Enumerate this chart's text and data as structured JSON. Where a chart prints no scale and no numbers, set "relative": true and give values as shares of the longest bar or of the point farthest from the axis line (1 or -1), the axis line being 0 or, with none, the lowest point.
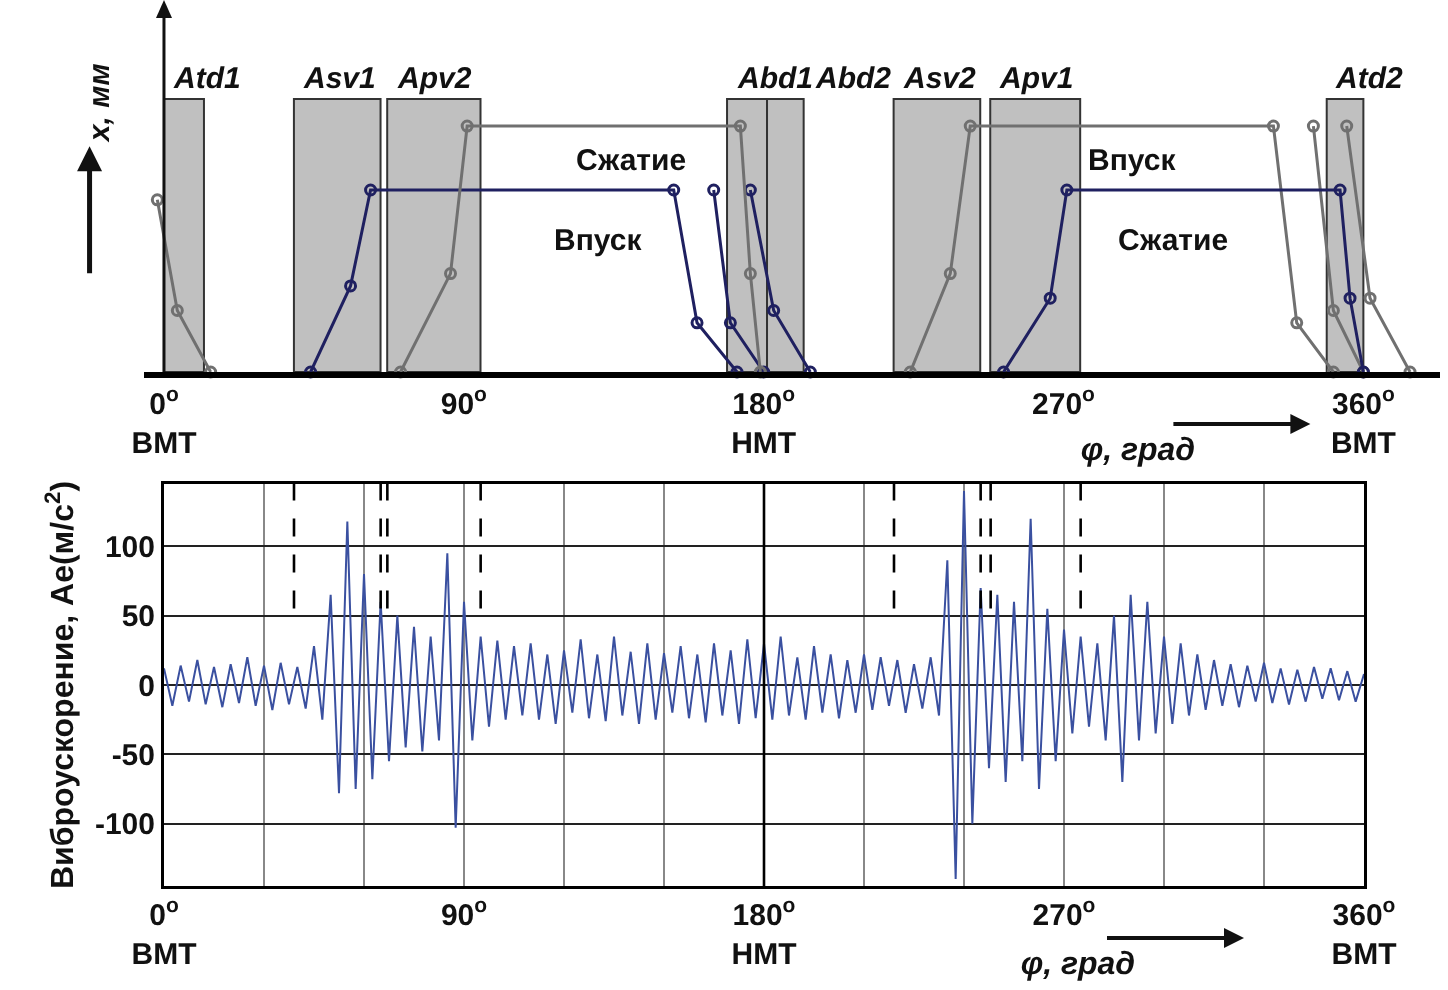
{
  "chart_data": [
    {
      "type": "line",
      "relative": true,
      "ylabel": "x, мм",
      "xlabel": "φ, град",
      "marker": "circle",
      "tick_labels": "x",
      "xlim": [
        -6,
        383
      ],
      "xticks": [
        {
          "value": 0,
          "label": "0$^{o}$\nВМТ"
        },
        {
          "value": 90,
          "label": "90$^{o}$"
        },
        {
          "value": 180,
          "label": "180$^{o}$\nНМТ"
        },
        {
          "value": 270,
          "label": "270$^{o}$"
        },
        {
          "value": 360,
          "label": "360$^{o}$\nВМТ"
        }
      ],
      "bands": [
        {
          "axis": "x",
          "from": 0,
          "to": 12,
          "label": "Atd1",
          "color": "#c0c0c0"
        },
        {
          "axis": "x",
          "from": 39,
          "to": 65,
          "label": "Asv1",
          "color": "#c0c0c0"
        },
        {
          "axis": "x",
          "from": 67,
          "to": 95,
          "label": "Apv2",
          "color": "#c0c0c0"
        },
        {
          "axis": "x",
          "from": 169,
          "to": 181,
          "label": "Abd1",
          "color": "#c0c0c0"
        },
        {
          "axis": "x",
          "from": 181,
          "to": 192,
          "label": "Abd2",
          "color": "#c0c0c0"
        },
        {
          "axis": "x",
          "from": 219,
          "to": 245,
          "label": "Asv2",
          "color": "#c0c0c0"
        },
        {
          "axis": "x",
          "from": 248,
          "to": 275,
          "label": "Apv1",
          "color": "#c0c0c0"
        },
        {
          "axis": "x",
          "from": 349,
          "to": 360,
          "label": "Atd2",
          "color": "#c0c0c0"
        }
      ],
      "series": [
        {
          "color": "#707070",
          "x": [
            -2,
            4,
            14
          ],
          "values": [
            0.7,
            0.25,
            0
          ]
        },
        {
          "color": "#1f2060",
          "x": [
            44,
            56,
            62,
            153,
            160,
            172
          ],
          "values": [
            0,
            0.35,
            0.74,
            0.74,
            0.2,
            0
          ]
        },
        {
          "color": "#1f2060",
          "x": [
            165,
            170,
            180
          ],
          "values": [
            0.74,
            0.2,
            0
          ]
        },
        {
          "color": "#1f2060",
          "x": [
            176,
            183,
            194
          ],
          "values": [
            0.74,
            0.25,
            0
          ]
        },
        {
          "color": "#707070",
          "x": [
            71,
            86,
            91,
            173,
            176,
            179
          ],
          "values": [
            0,
            0.4,
            1,
            1,
            0.4,
            0
          ]
        },
        {
          "color": "#707070",
          "x": [
            224,
            236,
            242,
            333,
            340,
            351
          ],
          "values": [
            0,
            0.4,
            1,
            1,
            0.2,
            0
          ]
        },
        {
          "color": "#707070",
          "x": [
            345,
            351,
            360
          ],
          "values": [
            1,
            0.25,
            0
          ]
        },
        {
          "color": "#707070",
          "x": [
            355,
            362,
            374
          ],
          "values": [
            1,
            0.3,
            0
          ]
        },
        {
          "color": "#1f2060",
          "x": [
            252,
            266,
            271,
            353,
            356,
            360
          ],
          "values": [
            0,
            0.3,
            0.74,
            0.74,
            0.3,
            0
          ]
        }
      ],
      "annotations": [
        "Сжатие",
        "Впуск",
        "Впуск",
        "Сжатие"
      ]
    },
    {
      "type": "line",
      "ylabel": "Виброускорение, Ae(м/с$^{2}$)",
      "xlabel": "φ, град",
      "grid": true,
      "xlim": [
        0,
        360
      ],
      "ylim": [
        -145,
        145
      ],
      "yticks": [
        -100,
        -50,
        0,
        50,
        100
      ],
      "xticks": [
        {
          "value": 0,
          "label": "0$^{o}$\nВМТ"
        },
        {
          "value": 30,
          "label": null
        },
        {
          "value": 60,
          "label": null
        },
        {
          "value": 90,
          "label": "90$^{o}$"
        },
        {
          "value": 120,
          "label": null
        },
        {
          "value": 150,
          "label": null
        },
        {
          "value": 180,
          "label": "180$^{o}$\nНМТ"
        },
        {
          "value": 210,
          "label": null
        },
        {
          "value": 240,
          "label": null
        },
        {
          "value": 270,
          "label": "270$^{o}$"
        },
        {
          "value": 300,
          "label": null
        },
        {
          "value": 330,
          "label": null
        },
        {
          "value": 360,
          "label": "360$^{o}$\nВМТ"
        }
      ],
      "ref_lines": [
        {
          "axis": "x",
          "value": 39,
          "line_style": "dashed"
        },
        {
          "axis": "x",
          "value": 65,
          "line_style": "dashed"
        },
        {
          "axis": "x",
          "value": 67,
          "line_style": "dashed"
        },
        {
          "axis": "x",
          "value": 95,
          "line_style": "dashed"
        },
        {
          "axis": "x",
          "value": 180,
          "line_style": "solid"
        },
        {
          "axis": "x",
          "value": 219,
          "line_style": "dashed"
        },
        {
          "axis": "x",
          "value": 245,
          "line_style": "dashed"
        },
        {
          "axis": "x",
          "value": 248,
          "line_style": "dashed"
        },
        {
          "axis": "x",
          "value": 275,
          "line_style": "dashed"
        }
      ],
      "series": [
        {
          "color": "#3a50a0",
          "x": [
            0,
            2.5,
            5,
            7.5,
            10,
            12.5,
            15,
            17.5,
            20,
            22.5,
            25,
            27.5,
            30,
            32.5,
            35,
            37.5,
            40,
            42.5,
            45,
            47.5,
            50,
            52.5,
            55,
            57.5,
            60,
            62.5,
            65,
            67.5,
            70,
            72.5,
            75,
            77.5,
            80,
            82.5,
            85,
            87.5,
            90,
            92.5,
            95,
            97.5,
            100,
            102.5,
            105,
            107.5,
            110,
            112.5,
            115,
            117.5,
            120,
            122.5,
            125,
            127.5,
            130,
            132.5,
            135,
            137.5,
            140,
            142.5,
            145,
            147.5,
            150,
            152.5,
            155,
            157.5,
            160,
            162.5,
            165,
            167.5,
            170,
            172.5,
            175,
            177.5,
            180,
            182.5,
            185,
            187.5,
            190,
            192.5,
            195,
            197.5,
            200,
            202.5,
            205,
            207.5,
            210,
            212.5,
            215,
            217.5,
            220,
            222.5,
            225,
            227.5,
            230,
            232.5,
            235,
            237.5,
            240,
            242.5,
            245,
            247.5,
            250,
            252.5,
            255,
            257.5,
            260,
            262.5,
            265,
            267.5,
            270,
            272.5,
            275,
            277.5,
            280,
            282.5,
            285,
            287.5,
            290,
            292.5,
            295,
            297.5,
            300,
            302.5,
            305,
            307.5,
            310,
            312.5,
            315,
            317.5,
            320,
            322.5,
            325,
            327.5,
            330,
            332.5,
            335,
            337.5,
            340,
            342.5,
            345,
            347.5,
            350,
            352.5,
            355,
            357.5,
            360
          ],
          "values": [
            12,
            -15,
            14,
            -12,
            18,
            -14,
            13,
            -16,
            15,
            -13,
            20,
            -15,
            14,
            -18,
            16,
            -14,
            13,
            -17,
            28,
            -25,
            65,
            -78,
            118,
            -75,
            80,
            -68,
            60,
            -55,
            50,
            -45,
            42,
            -48,
            35,
            -40,
            95,
            -103,
            60,
            -40,
            35,
            -30,
            32,
            -25,
            28,
            -22,
            30,
            -25,
            22,
            -28,
            25,
            -20,
            33,
            -24,
            22,
            -26,
            35,
            -22,
            24,
            -28,
            30,
            -25,
            23,
            -20,
            28,
            -24,
            22,
            -27,
            30,
            -22,
            25,
            -28,
            33,
            -24,
            30,
            -25,
            35,
            -22,
            20,
            -25,
            28,
            -20,
            22,
            -24,
            18,
            -20,
            22,
            -18,
            20,
            -15,
            18,
            -20,
            15,
            -17,
            20,
            -22,
            90,
            -140,
            140,
            -100,
            70,
            -60,
            65,
            -70,
            60,
            -55,
            120,
            -75,
            55,
            -55,
            40,
            -35,
            35,
            -30,
            30,
            -40,
            50,
            -70,
            65,
            -40,
            60,
            -35,
            35,
            -28,
            30,
            -22,
            22,
            -18,
            18,
            -15,
            15,
            -16,
            14,
            -12,
            16,
            -13,
            12,
            -14,
            11,
            -12,
            13,
            -10,
            12,
            -11,
            10,
            -12,
            8
          ]
        }
      ]
    }
  ]
}
